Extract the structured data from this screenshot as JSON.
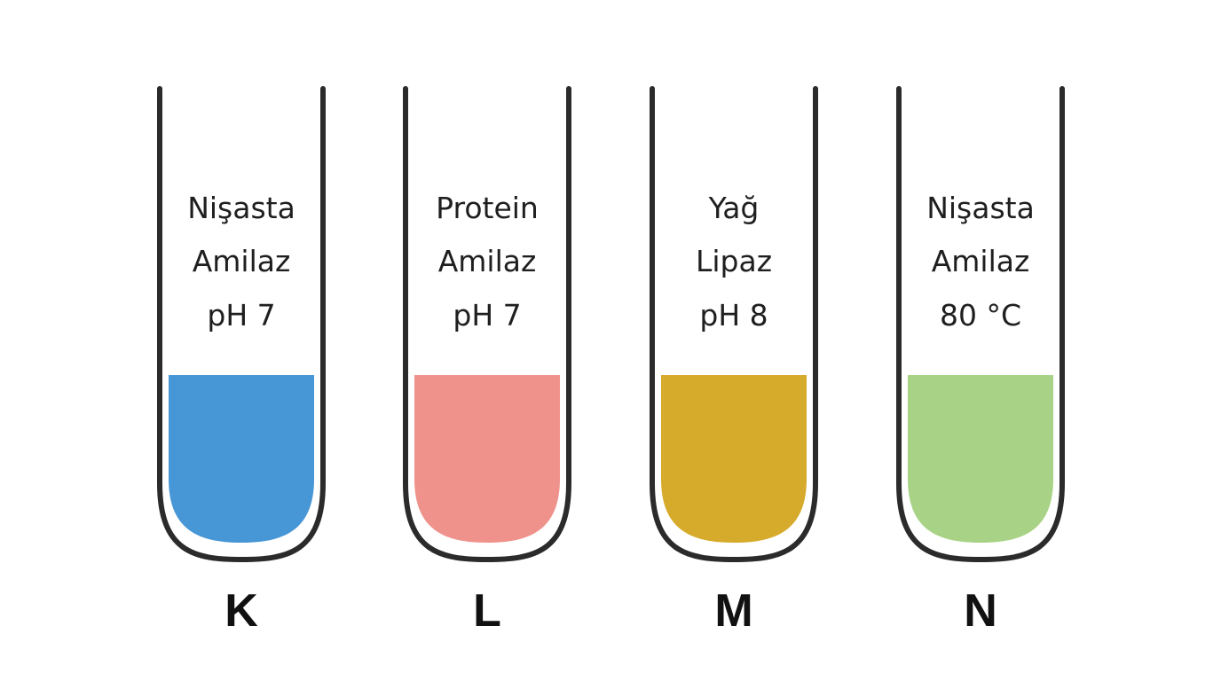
{
  "tubes": [
    {
      "letter": "K",
      "lines": [
        "Nişasta",
        "Amilaz",
        "pH 7"
      ],
      "liquid_color": "#4796d6"
    },
    {
      "letter": "L",
      "lines": [
        "Protein",
        "Amilaz",
        "pH 7"
      ],
      "liquid_color": "#f0928c"
    },
    {
      "letter": "M",
      "lines": [
        "Yağ",
        "Lipaz",
        "pH 8"
      ],
      "liquid_color": "#d6aa2a"
    },
    {
      "letter": "N",
      "lines": [
        "Nişasta",
        "Amilaz",
        "80 °C"
      ],
      "liquid_color": "#a8d386"
    }
  ],
  "colors": {
    "tube_outline": "#2b2b2b",
    "background": "#ffffff"
  }
}
